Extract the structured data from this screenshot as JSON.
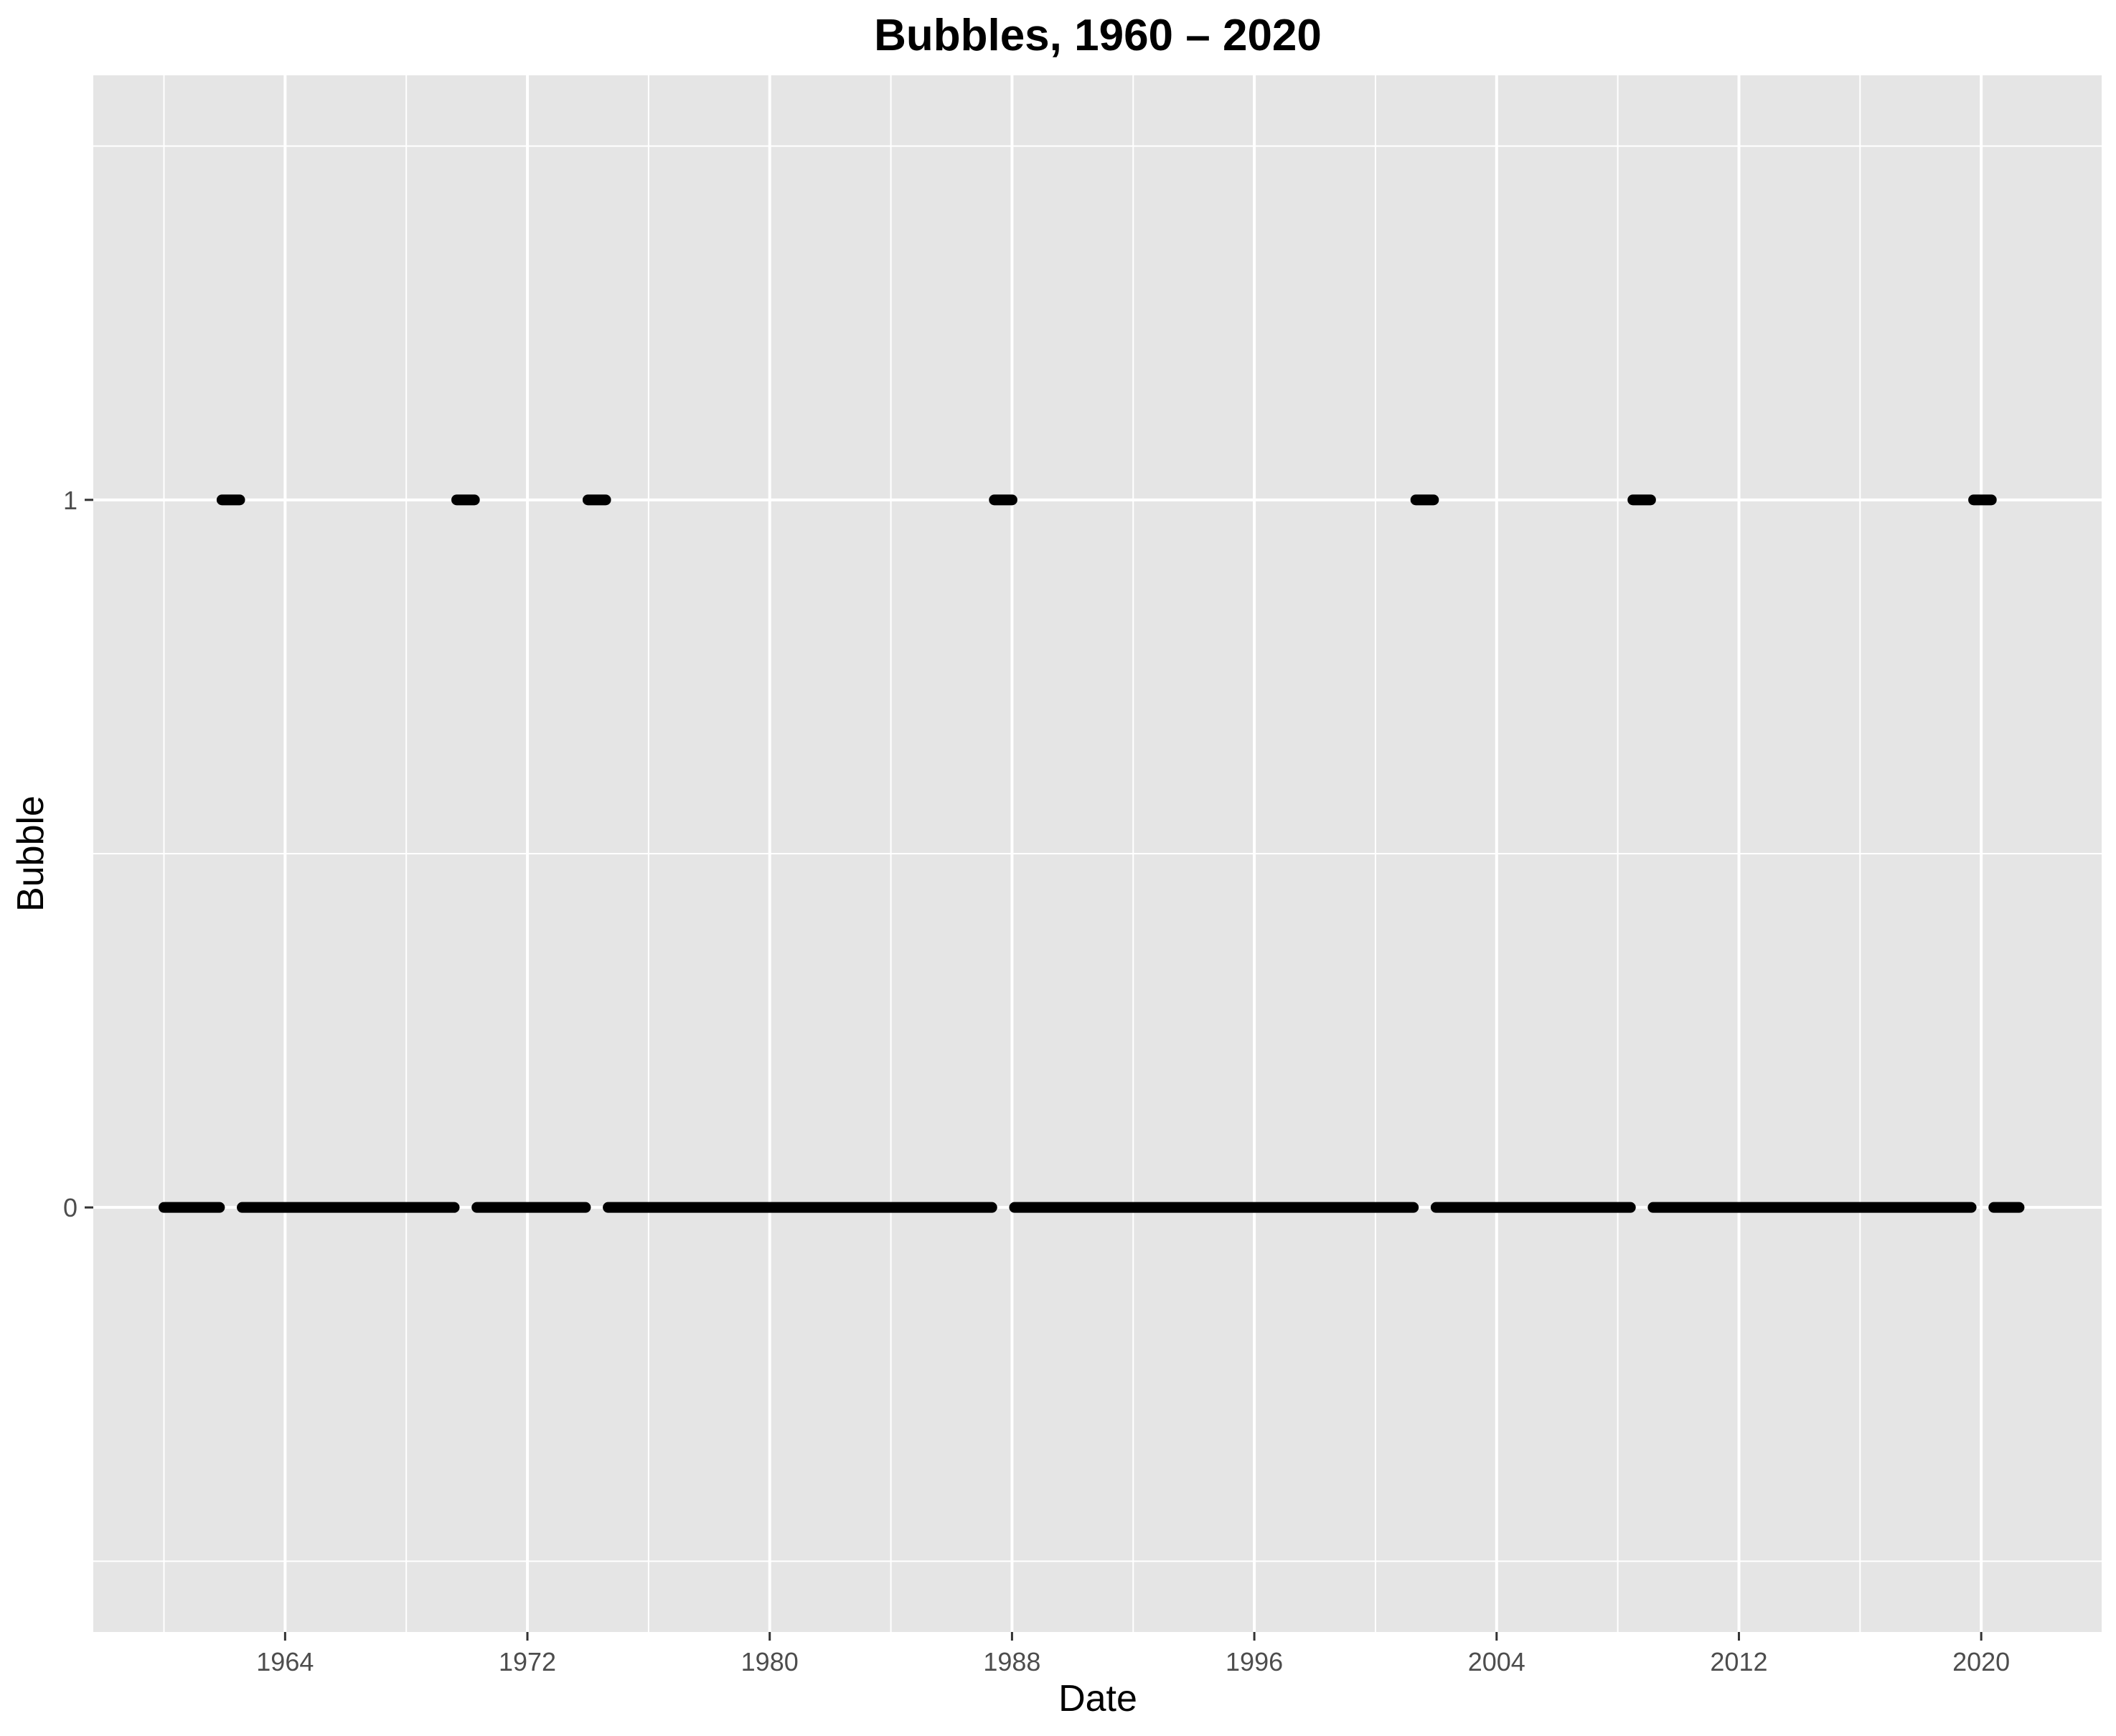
{
  "chart_data": {
    "type": "scatter",
    "title": "Bubbles, 1960 – 2020",
    "xlabel": "Date",
    "ylabel": "Bubble",
    "xlim": [
      "1957-09-01",
      "2024-01-01"
    ],
    "ylim": [
      -0.6,
      1.6
    ],
    "x_ticks": [
      "1964",
      "1972",
      "1980",
      "1988",
      "1996",
      "2004",
      "2012",
      "2020"
    ],
    "y_ticks": [
      "0",
      "1"
    ],
    "grid": true,
    "legend": "none",
    "panel_background": "#e5e5e5",
    "grid_color": "#ffffff",
    "point_color": "#000000",
    "series": [
      {
        "values": [
          {
            "start": "1960-01-01",
            "end": "1961-11-01",
            "y": 0
          },
          {
            "start": "1961-12-01",
            "end": "1962-07-01",
            "y": 1
          },
          {
            "start": "1962-08-01",
            "end": "1969-08-01",
            "y": 0
          },
          {
            "start": "1969-09-01",
            "end": "1970-04-01",
            "y": 1
          },
          {
            "start": "1970-05-01",
            "end": "1973-12-01",
            "y": 0
          },
          {
            "start": "1974-01-01",
            "end": "1974-08-01",
            "y": 1
          },
          {
            "start": "1974-09-01",
            "end": "1987-05-01",
            "y": 0
          },
          {
            "start": "1987-06-01",
            "end": "1988-01-01",
            "y": 1
          },
          {
            "start": "1988-02-01",
            "end": "2001-04-01",
            "y": 0
          },
          {
            "start": "2001-05-01",
            "end": "2001-12-01",
            "y": 1
          },
          {
            "start": "2002-01-01",
            "end": "2008-06-01",
            "y": 0
          },
          {
            "start": "2008-07-01",
            "end": "2009-02-01",
            "y": 1
          },
          {
            "start": "2009-03-01",
            "end": "2019-09-01",
            "y": 0
          },
          {
            "start": "2019-10-01",
            "end": "2020-05-01",
            "y": 1
          },
          {
            "start": "2020-06-01",
            "end": "2021-04-01",
            "y": 0
          }
        ]
      }
    ]
  }
}
